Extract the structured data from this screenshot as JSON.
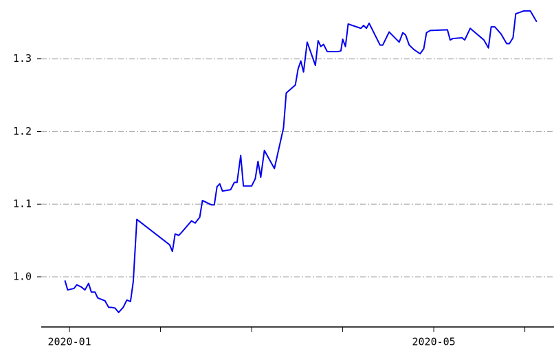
{
  "chart_data": {
    "type": "line",
    "x": [
      0.95,
      0.98,
      1.05,
      1.08,
      1.13,
      1.17,
      1.21,
      1.24,
      1.28,
      1.31,
      1.35,
      1.39,
      1.43,
      1.46,
      1.5,
      1.54,
      1.59,
      1.63,
      1.67,
      1.7,
      1.74,
      2.1,
      2.13,
      2.16,
      2.2,
      2.23,
      2.34,
      2.38,
      2.43,
      2.46,
      2.56,
      2.59,
      2.62,
      2.65,
      2.68,
      2.77,
      2.81,
      2.84,
      2.88,
      2.91,
      3.0,
      3.04,
      3.07,
      3.1,
      3.14,
      3.25,
      3.35,
      3.38,
      3.48,
      3.51,
      3.54,
      3.57,
      3.61,
      3.7,
      3.73,
      3.76,
      3.79,
      3.83,
      3.95,
      3.98,
      4.0,
      4.03,
      4.06,
      4.2,
      4.23,
      4.26,
      4.29,
      4.41,
      4.44,
      4.51,
      4.62,
      4.66,
      4.69,
      4.73,
      4.78,
      4.85,
      4.89,
      4.92,
      4.96,
      5.15,
      5.18,
      5.21,
      5.31,
      5.34,
      5.4,
      5.55,
      5.6,
      5.63,
      5.67,
      5.74,
      5.8,
      5.83,
      5.87,
      5.9,
      5.99,
      6.06,
      6.13
    ],
    "series": [
      {
        "color": "#0000ee",
        "values": [
          0.995,
          0.982,
          0.984,
          0.989,
          0.986,
          0.982,
          0.991,
          0.979,
          0.979,
          0.971,
          0.969,
          0.967,
          0.958,
          0.958,
          0.957,
          0.951,
          0.958,
          0.968,
          0.966,
          0.993,
          1.079,
          1.044,
          1.035,
          1.059,
          1.057,
          1.061,
          1.077,
          1.074,
          1.082,
          1.105,
          1.099,
          1.099,
          1.124,
          1.128,
          1.118,
          1.12,
          1.13,
          1.13,
          1.167,
          1.125,
          1.125,
          1.135,
          1.159,
          1.137,
          1.174,
          1.149,
          1.205,
          1.253,
          1.264,
          1.286,
          1.297,
          1.282,
          1.323,
          1.291,
          1.325,
          1.317,
          1.32,
          1.31,
          1.31,
          1.311,
          1.327,
          1.317,
          1.348,
          1.342,
          1.346,
          1.342,
          1.349,
          1.319,
          1.319,
          1.337,
          1.323,
          1.336,
          1.333,
          1.319,
          1.313,
          1.307,
          1.314,
          1.336,
          1.339,
          1.34,
          1.326,
          1.328,
          1.329,
          1.326,
          1.342,
          1.326,
          1.315,
          1.344,
          1.344,
          1.334,
          1.321,
          1.321,
          1.329,
          1.362,
          1.366,
          1.366,
          1.351
        ]
      }
    ],
    "xlim": [
      0.69,
      6.32
    ],
    "xticks": [
      {
        "value": 1,
        "label": "2020-01"
      },
      {
        "value": 2,
        "label": null
      },
      {
        "value": 3,
        "label": null
      },
      {
        "value": 4,
        "label": null
      },
      {
        "value": 5,
        "label": "2020-05"
      },
      {
        "value": 6,
        "label": null
      }
    ],
    "ylim": [
      0.931,
      1.381
    ],
    "yticks": [
      {
        "value": 1,
        "label": "1.0"
      },
      1.1,
      1.2,
      1.3
    ],
    "grid": true
  }
}
